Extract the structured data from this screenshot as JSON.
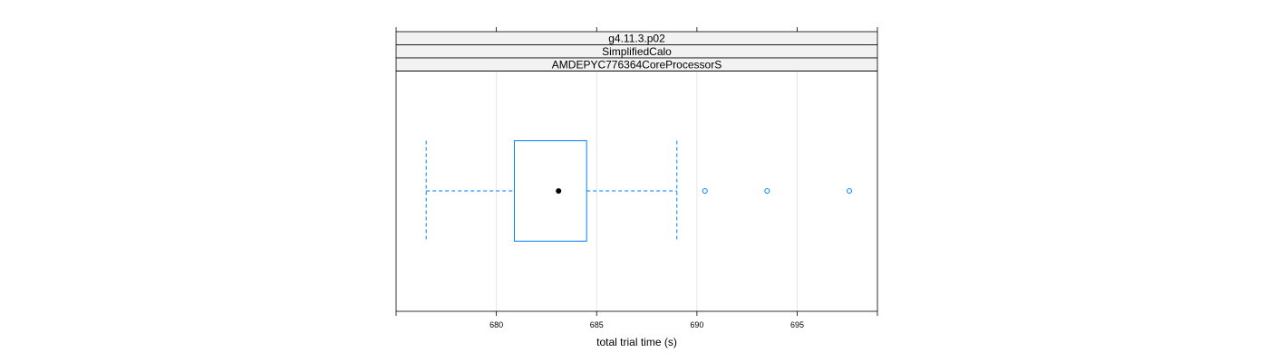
{
  "chart_data": {
    "type": "box",
    "orientation": "horizontal",
    "strips": [
      "g4.11.3.p02",
      "SimplifiedCalo",
      "AMDEPYC776364CoreProcessorS"
    ],
    "xlabel": "total trial time (s)",
    "xlim": [
      675,
      699
    ],
    "xticks": [
      680,
      685,
      690,
      695
    ],
    "grid": true,
    "box": {
      "whisker_low": 676.5,
      "q1": 680.9,
      "median": 683.1,
      "q3": 684.5,
      "whisker_high": 689.0,
      "outliers": [
        690.4,
        693.5,
        697.6
      ]
    },
    "colors": {
      "box": "#0080ff",
      "strip_bg": "#f2f2f2",
      "grid": "#e6e6e6",
      "median_dot": "#000000"
    }
  }
}
